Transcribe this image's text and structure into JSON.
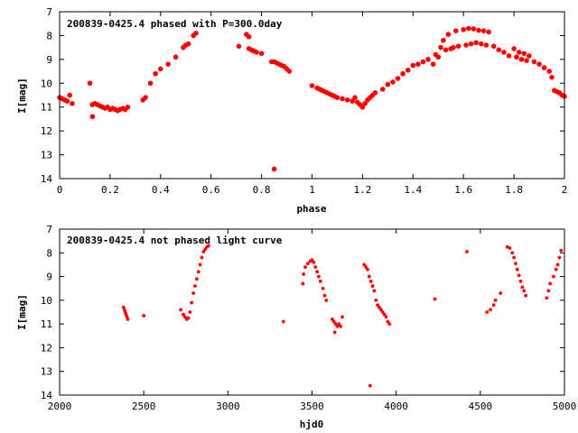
{
  "chart_data": [
    {
      "type": "scatter",
      "title": "200839-0425.4 phased with P=300.0day",
      "xlabel": "phase",
      "ylabel": "I[mag]",
      "xlim": [
        0,
        2
      ],
      "ylim": [
        14,
        7
      ],
      "y_inverted": true,
      "grid": false,
      "legend": "none",
      "marker_color": "#ff0000",
      "xticks": [
        "0",
        "0.2",
        "0.4",
        "0.6",
        "0.8",
        "1",
        "1.2",
        "1.4",
        "1.6",
        "1.8",
        "2"
      ],
      "yticks": [
        "7",
        "8",
        "9",
        "10",
        "11",
        "12",
        "13",
        "14"
      ],
      "series": [
        {
          "points": [
            [
              0.0,
              10.6
            ],
            [
              0.01,
              10.65
            ],
            [
              0.02,
              10.7
            ],
            [
              0.03,
              10.75
            ],
            [
              0.04,
              10.5
            ],
            [
              0.05,
              10.85
            ],
            [
              0.12,
              10.0
            ],
            [
              0.13,
              11.4
            ],
            [
              0.13,
              10.9
            ],
            [
              0.14,
              10.85
            ],
            [
              0.15,
              10.9
            ],
            [
              0.16,
              10.95
            ],
            [
              0.17,
              11.0
            ],
            [
              0.18,
              11.05
            ],
            [
              0.19,
              11.0
            ],
            [
              0.2,
              11.1
            ],
            [
              0.21,
              11.05
            ],
            [
              0.22,
              11.1
            ],
            [
              0.23,
              11.15
            ],
            [
              0.24,
              11.1
            ],
            [
              0.25,
              11.05
            ],
            [
              0.26,
              11.1
            ],
            [
              0.27,
              11.0
            ],
            [
              0.33,
              10.7
            ],
            [
              0.34,
              10.6
            ],
            [
              0.36,
              10.0
            ],
            [
              0.38,
              9.6
            ],
            [
              0.4,
              9.4
            ],
            [
              0.43,
              9.2
            ],
            [
              0.46,
              8.9
            ],
            [
              0.49,
              8.5
            ],
            [
              0.5,
              8.4
            ],
            [
              0.51,
              8.35
            ],
            [
              0.53,
              8.0
            ],
            [
              0.54,
              7.9
            ],
            [
              0.71,
              8.45
            ],
            [
              0.74,
              7.95
            ],
            [
              0.75,
              8.05
            ],
            [
              0.75,
              8.55
            ],
            [
              0.76,
              8.6
            ],
            [
              0.77,
              8.65
            ],
            [
              0.78,
              8.7
            ],
            [
              0.8,
              8.75
            ],
            [
              0.84,
              9.1
            ],
            [
              0.85,
              9.1
            ],
            [
              0.86,
              9.15
            ],
            [
              0.87,
              9.2
            ],
            [
              0.88,
              9.25
            ],
            [
              0.89,
              9.3
            ],
            [
              0.9,
              9.4
            ],
            [
              0.91,
              9.5
            ],
            [
              0.85,
              13.6
            ],
            [
              1.0,
              10.1
            ],
            [
              1.02,
              10.2
            ],
            [
              1.03,
              10.25
            ],
            [
              1.04,
              10.3
            ],
            [
              1.05,
              10.35
            ],
            [
              1.06,
              10.4
            ],
            [
              1.07,
              10.45
            ],
            [
              1.08,
              10.5
            ],
            [
              1.09,
              10.55
            ],
            [
              1.1,
              10.6
            ],
            [
              1.12,
              10.65
            ],
            [
              1.14,
              10.7
            ],
            [
              1.16,
              10.75
            ],
            [
              1.17,
              10.6
            ],
            [
              1.18,
              10.8
            ],
            [
              1.19,
              10.9
            ],
            [
              1.2,
              11.0
            ],
            [
              1.21,
              10.85
            ],
            [
              1.22,
              10.7
            ],
            [
              1.23,
              10.6
            ],
            [
              1.24,
              10.5
            ],
            [
              1.25,
              10.4
            ],
            [
              1.28,
              10.25
            ],
            [
              1.3,
              10.05
            ],
            [
              1.32,
              9.95
            ],
            [
              1.34,
              9.8
            ],
            [
              1.36,
              9.6
            ],
            [
              1.38,
              9.45
            ],
            [
              1.4,
              9.25
            ],
            [
              1.42,
              9.2
            ],
            [
              1.44,
              9.1
            ],
            [
              1.46,
              9.0
            ],
            [
              1.48,
              9.2
            ],
            [
              1.49,
              8.8
            ],
            [
              1.5,
              8.9
            ],
            [
              1.51,
              8.5
            ],
            [
              1.52,
              8.2
            ],
            [
              1.53,
              8.6
            ],
            [
              1.54,
              7.95
            ],
            [
              1.55,
              8.55
            ],
            [
              1.56,
              8.5
            ],
            [
              1.57,
              7.8
            ],
            [
              1.58,
              8.45
            ],
            [
              1.6,
              7.75
            ],
            [
              1.61,
              8.4
            ],
            [
              1.62,
              7.7
            ],
            [
              1.63,
              8.35
            ],
            [
              1.64,
              7.72
            ],
            [
              1.65,
              8.3
            ],
            [
              1.66,
              7.78
            ],
            [
              1.67,
              8.35
            ],
            [
              1.68,
              7.8
            ],
            [
              1.69,
              8.4
            ],
            [
              1.7,
              7.85
            ],
            [
              1.72,
              8.45
            ],
            [
              1.74,
              8.6
            ],
            [
              1.76,
              8.7
            ],
            [
              1.78,
              8.85
            ],
            [
              1.8,
              8.55
            ],
            [
              1.81,
              8.9
            ],
            [
              1.82,
              8.7
            ],
            [
              1.83,
              9.0
            ],
            [
              1.84,
              8.75
            ],
            [
              1.85,
              9.05
            ],
            [
              1.86,
              8.85
            ],
            [
              1.88,
              9.1
            ],
            [
              1.9,
              9.2
            ],
            [
              1.92,
              9.35
            ],
            [
              1.94,
              9.5
            ],
            [
              1.95,
              9.75
            ],
            [
              1.96,
              10.3
            ],
            [
              1.97,
              10.35
            ],
            [
              1.98,
              10.4
            ],
            [
              1.99,
              10.5
            ],
            [
              2.0,
              10.55
            ]
          ]
        }
      ]
    },
    {
      "type": "scatter",
      "title": "200839-0425.4 not phased light curve",
      "xlabel": "hjd0",
      "ylabel": "I[mag]",
      "xlim": [
        2000,
        5000
      ],
      "ylim": [
        14,
        7
      ],
      "y_inverted": true,
      "grid": false,
      "legend": "none",
      "marker_color": "#ff0000",
      "xticks": [
        "2000",
        "2500",
        "3000",
        "3500",
        "4000",
        "4500",
        "5000"
      ],
      "yticks": [
        "7",
        "8",
        "9",
        "10",
        "11",
        "12",
        "13",
        "14"
      ],
      "series": [
        {
          "points": [
            [
              2380,
              10.3
            ],
            [
              2385,
              10.4
            ],
            [
              2390,
              10.5
            ],
            [
              2395,
              10.6
            ],
            [
              2400,
              10.7
            ],
            [
              2405,
              10.8
            ],
            [
              2500,
              10.65
            ],
            [
              2720,
              10.4
            ],
            [
              2735,
              10.6
            ],
            [
              2745,
              10.7
            ],
            [
              2755,
              10.8
            ],
            [
              2765,
              10.75
            ],
            [
              2775,
              10.5
            ],
            [
              2785,
              10.1
            ],
            [
              2795,
              9.7
            ],
            [
              2805,
              9.4
            ],
            [
              2815,
              9.1
            ],
            [
              2825,
              8.8
            ],
            [
              2835,
              8.5
            ],
            [
              2845,
              8.2
            ],
            [
              2855,
              7.95
            ],
            [
              2865,
              7.85
            ],
            [
              2875,
              7.75
            ],
            [
              2885,
              7.7
            ],
            [
              3330,
              10.9
            ],
            [
              3445,
              9.3
            ],
            [
              3450,
              8.9
            ],
            [
              3460,
              8.6
            ],
            [
              3475,
              8.45
            ],
            [
              3490,
              8.35
            ],
            [
              3500,
              8.3
            ],
            [
              3510,
              8.4
            ],
            [
              3520,
              8.6
            ],
            [
              3530,
              8.8
            ],
            [
              3540,
              9.0
            ],
            [
              3550,
              9.2
            ],
            [
              3565,
              9.5
            ],
            [
              3575,
              9.8
            ],
            [
              3585,
              10.0
            ],
            [
              3620,
              10.8
            ],
            [
              3630,
              10.9
            ],
            [
              3635,
              11.35
            ],
            [
              3640,
              11.0
            ],
            [
              3650,
              11.1
            ],
            [
              3660,
              11.0
            ],
            [
              3670,
              11.1
            ],
            [
              3680,
              10.7
            ],
            [
              3810,
              8.5
            ],
            [
              3820,
              8.6
            ],
            [
              3830,
              8.7
            ],
            [
              3840,
              9.0
            ],
            [
              3850,
              9.2
            ],
            [
              3860,
              9.4
            ],
            [
              3870,
              9.6
            ],
            [
              3880,
              10.0
            ],
            [
              3890,
              10.2
            ],
            [
              3900,
              10.3
            ],
            [
              3910,
              10.4
            ],
            [
              3920,
              10.5
            ],
            [
              3930,
              10.6
            ],
            [
              3940,
              10.7
            ],
            [
              3950,
              10.9
            ],
            [
              3960,
              11.0
            ],
            [
              3845,
              13.6
            ],
            [
              4230,
              9.95
            ],
            [
              4420,
              7.95
            ],
            [
              4540,
              10.5
            ],
            [
              4560,
              10.4
            ],
            [
              4580,
              10.2
            ],
            [
              4590,
              10.0
            ],
            [
              4620,
              9.7
            ],
            [
              4660,
              7.75
            ],
            [
              4675,
              7.8
            ],
            [
              4690,
              8.0
            ],
            [
              4700,
              8.2
            ],
            [
              4710,
              8.45
            ],
            [
              4720,
              8.7
            ],
            [
              4730,
              8.95
            ],
            [
              4740,
              9.2
            ],
            [
              4750,
              9.45
            ],
            [
              4760,
              9.6
            ],
            [
              4770,
              9.8
            ],
            [
              4895,
              9.9
            ],
            [
              4905,
              9.6
            ],
            [
              4915,
              9.3
            ],
            [
              4935,
              9.0
            ],
            [
              4950,
              8.7
            ],
            [
              4960,
              8.5
            ],
            [
              4970,
              8.2
            ],
            [
              4980,
              7.9
            ]
          ]
        }
      ]
    }
  ]
}
